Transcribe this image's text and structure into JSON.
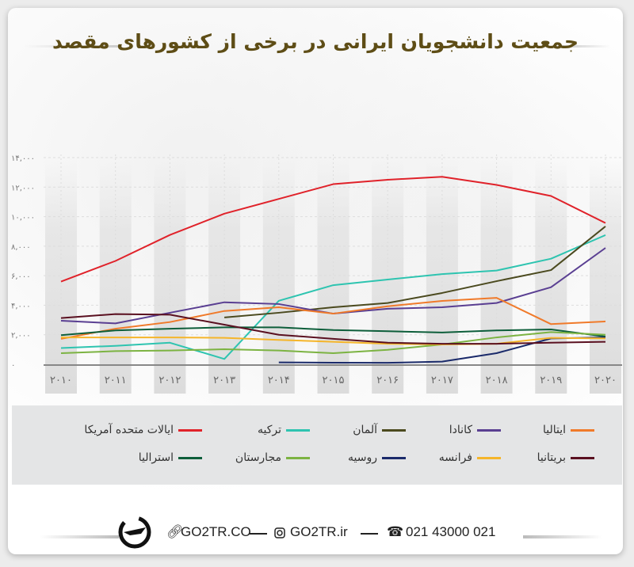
{
  "title": "جمعیت دانشجویان ایرانی در برخی از کشورهای مقصد",
  "chart_data": {
    "type": "line",
    "title": "جمعیت دانشجویان ایرانی در برخی از کشورهای مقصد",
    "x": [
      "۲۰۱۰",
      "۲۰۱۱",
      "۲۰۱۲",
      "۲۰۱۳",
      "۲۰۱۴",
      "۲۰۱۵",
      "۲۰۱۶",
      "۲۰۱۷",
      "۲۰۱۸",
      "۲۰۱۹",
      "۲۰۲۰"
    ],
    "ylim": [
      0,
      14000
    ],
    "yticks": [
      0,
      2000,
      4000,
      6000,
      8000,
      10000,
      12000,
      14000
    ],
    "ytick_labels": [
      "۰",
      "۲,۰۰۰",
      "۴,۰۰۰",
      "۶,۰۰۰",
      "۸,۰۰۰",
      "۱۰,۰۰۰",
      "۱۲,۰۰۰",
      "۱۴,۰۰۰"
    ],
    "grid": true,
    "legend_position": "bottom",
    "series": [
      {
        "name": "ایالات متحده آمریکا",
        "color": "#e0222a",
        "values": [
          5600,
          7000,
          8760,
          10200,
          11200,
          12200,
          12500,
          12700,
          12150,
          11400,
          9570
        ]
      },
      {
        "name": "ترکیه",
        "color": "#2ec4b0",
        "values": [
          1100,
          1250,
          1460,
          360,
          4300,
          5360,
          5740,
          6110,
          6350,
          7150,
          8750
        ]
      },
      {
        "name": "آلمان",
        "color": "#4b4a1f",
        "values": [
          null,
          null,
          null,
          3170,
          3490,
          3860,
          4150,
          4830,
          5630,
          6380,
          9340
        ]
      },
      {
        "name": "کانادا",
        "color": "#5a3f92",
        "values": [
          2950,
          2770,
          3490,
          4200,
          4080,
          3430,
          3760,
          3860,
          4150,
          5220,
          7880
        ]
      },
      {
        "name": "ایتالیا",
        "color": "#f07a2a",
        "values": [
          1720,
          2410,
          2860,
          3610,
          3860,
          3430,
          3930,
          4290,
          4500,
          2720,
          2900
        ]
      },
      {
        "name": "استرالیا",
        "color": "#0d5e3a",
        "values": [
          1970,
          2290,
          2410,
          2500,
          2500,
          2320,
          2240,
          2150,
          2290,
          2360,
          1880
        ]
      },
      {
        "name": "مجارستان",
        "color": "#7cb342",
        "values": [
          750,
          890,
          930,
          1020,
          930,
          750,
          980,
          1340,
          1820,
          2180,
          2000
        ]
      },
      {
        "name": "روسیه",
        "color": "#1a2a6a",
        "values": [
          null,
          null,
          null,
          null,
          130,
          110,
          100,
          180,
          750,
          1750,
          1820
        ]
      },
      {
        "name": "فرانسه",
        "color": "#f5b52a",
        "values": [
          1820,
          1820,
          1820,
          1790,
          1650,
          1520,
          1390,
          1340,
          1390,
          1790,
          1750
        ]
      },
      {
        "name": "بریتانیا",
        "color": "#5a1020",
        "values": [
          3130,
          3400,
          3360,
          2680,
          2000,
          1720,
          1460,
          1390,
          1390,
          1460,
          1520
        ]
      }
    ]
  },
  "legend_order": [
    [
      4,
      3,
      2,
      1,
      0
    ],
    [
      9,
      8,
      7,
      6,
      5
    ]
  ],
  "footer": {
    "site1": "GO2TR.CO",
    "site2": "GO2TR.ir",
    "phone": "021 43000 021",
    "icons": [
      "logo-plane-icon",
      "link-icon",
      "instagram-icon",
      "phone-icon"
    ]
  }
}
